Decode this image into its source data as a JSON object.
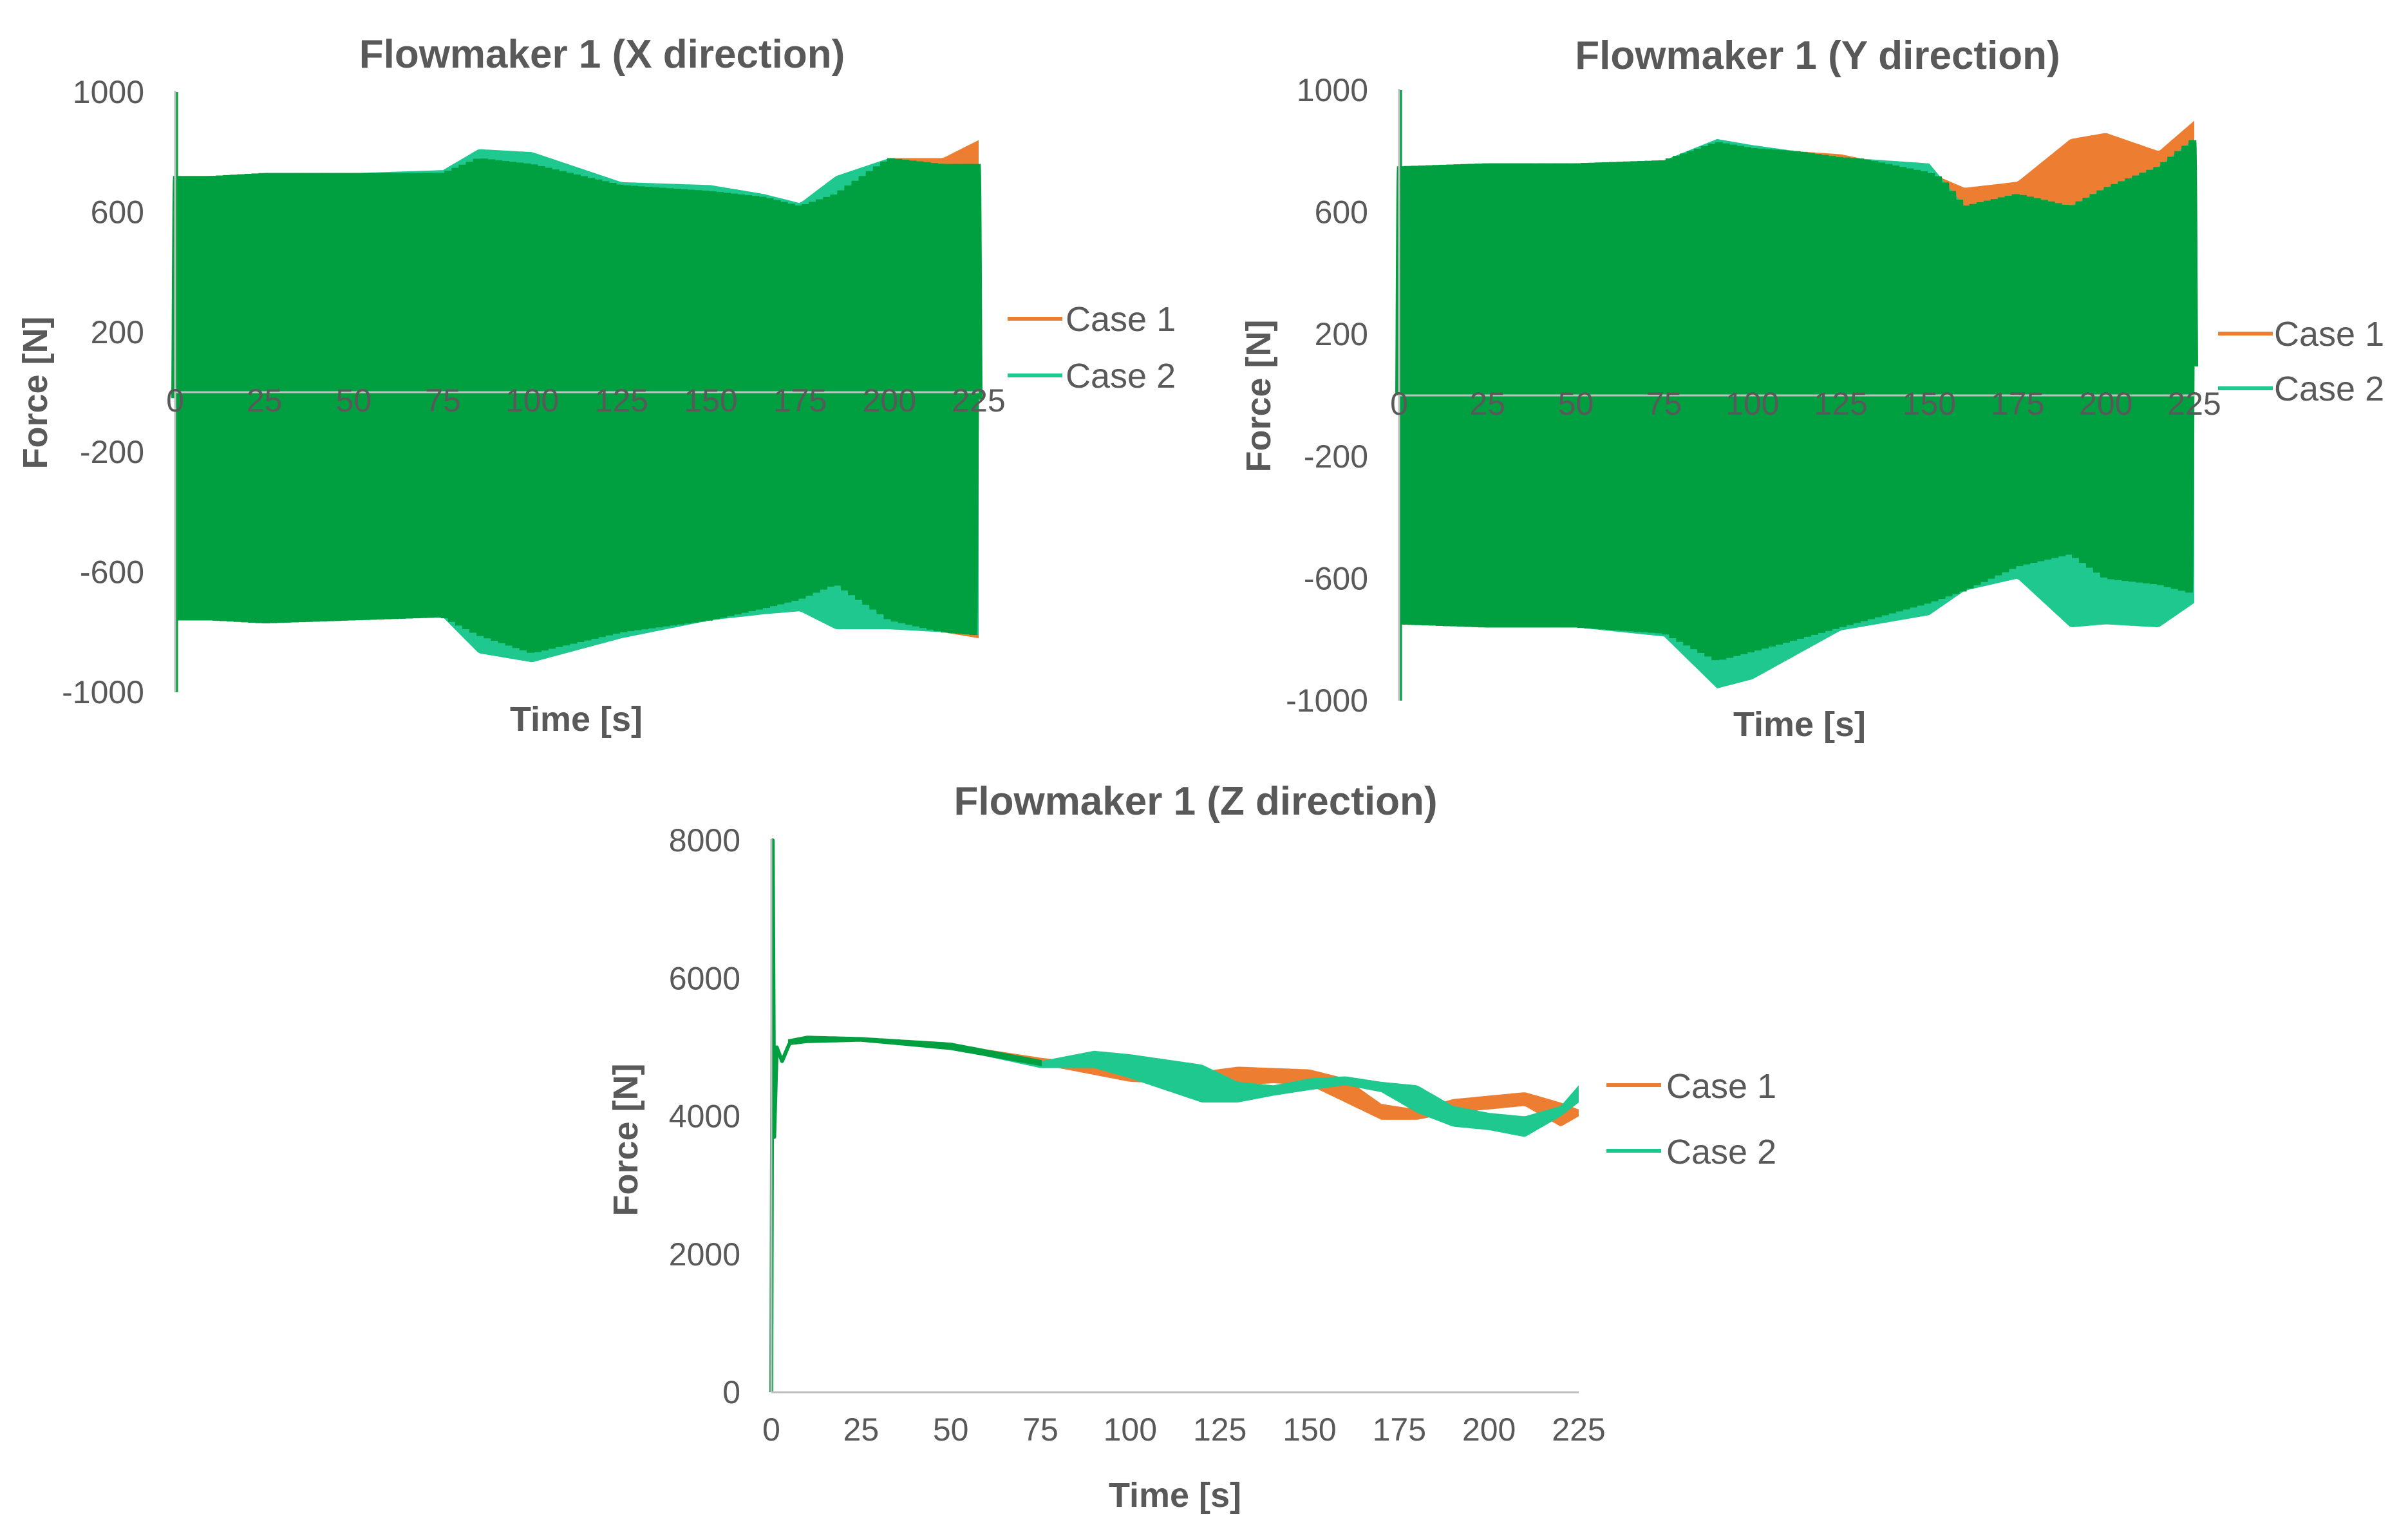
{
  "colors": {
    "case1": "#ED7D31",
    "case2": "#1FC88F",
    "overlap": "#00A040",
    "text": "#595959",
    "axis": "#7F7F7F"
  },
  "chart_data": [
    {
      "id": "fx",
      "type": "line",
      "title": "Flowmaker 1 (X direction)",
      "xlabel": "Time [s]",
      "ylabel": "Force [N]",
      "xlim": [
        0,
        225
      ],
      "ylim": [
        -1000,
        1000
      ],
      "xticks": [
        "0",
        "25",
        "50",
        "75",
        "100",
        "125",
        "150",
        "175",
        "200",
        "225"
      ],
      "yticks": [
        "1000",
        "600",
        "200",
        "-200",
        "-600",
        "-1000"
      ],
      "legend": [
        "Case 1",
        "Case 2"
      ],
      "oscillation_period_s": 2.0,
      "series": [
        {
          "name": "Case 1",
          "x": [
            0,
            10,
            25,
            50,
            75,
            85,
            100,
            125,
            150,
            165,
            175,
            185,
            200,
            215,
            225
          ],
          "upper": [
            720,
            720,
            730,
            730,
            730,
            780,
            760,
            690,
            670,
            650,
            620,
            660,
            780,
            780,
            840
          ],
          "lower": [
            -760,
            -760,
            -770,
            -760,
            -750,
            -810,
            -870,
            -800,
            -760,
            -720,
            -690,
            -640,
            -760,
            -800,
            -820
          ]
        },
        {
          "name": "Case 2",
          "x": [
            0,
            10,
            25,
            50,
            75,
            85,
            100,
            125,
            150,
            165,
            175,
            185,
            200,
            215,
            225
          ],
          "upper": [
            720,
            720,
            730,
            730,
            740,
            810,
            800,
            700,
            690,
            660,
            630,
            720,
            780,
            760,
            760
          ],
          "lower": [
            -760,
            -760,
            -770,
            -760,
            -750,
            -870,
            -900,
            -820,
            -760,
            -740,
            -730,
            -790,
            -790,
            -800,
            -810
          ]
        }
      ]
    },
    {
      "id": "fy",
      "type": "line",
      "title": "Flowmaker 1 (Y direction)",
      "xlabel": "Time [s]",
      "ylabel": "Force [N]",
      "xlim": [
        0,
        225
      ],
      "ylim": [
        -1000,
        1000
      ],
      "xticks": [
        "0",
        "25",
        "50",
        "75",
        "100",
        "125",
        "150",
        "175",
        "200",
        "225"
      ],
      "yticks": [
        "1000",
        "600",
        "200",
        "-200",
        "-600",
        "-1000"
      ],
      "legend": [
        "Case 1",
        "Case 2"
      ],
      "oscillation_period_s": 2.0,
      "series": [
        {
          "name": "Case 1",
          "x": [
            0,
            25,
            50,
            75,
            90,
            100,
            125,
            150,
            160,
            175,
            190,
            200,
            215,
            225
          ],
          "upper": [
            750,
            760,
            760,
            770,
            830,
            810,
            790,
            730,
            680,
            700,
            840,
            860,
            800,
            900
          ],
          "lower": [
            -750,
            -760,
            -760,
            -780,
            -870,
            -840,
            -760,
            -680,
            -640,
            -560,
            -520,
            -600,
            -620,
            -650
          ]
        },
        {
          "name": "Case 2",
          "x": [
            0,
            25,
            50,
            75,
            90,
            100,
            125,
            150,
            160,
            175,
            190,
            200,
            215,
            225
          ],
          "upper": [
            750,
            760,
            760,
            770,
            840,
            820,
            780,
            760,
            620,
            660,
            620,
            680,
            750,
            840
          ],
          "lower": [
            -750,
            -760,
            -760,
            -790,
            -960,
            -930,
            -770,
            -720,
            -640,
            -600,
            -760,
            -750,
            -760,
            -680
          ]
        }
      ]
    },
    {
      "id": "fz",
      "type": "line",
      "title": "Flowmaker 1 (Z direction)",
      "xlabel": "Time [s]",
      "ylabel": "Force [N]",
      "xlim": [
        0,
        225
      ],
      "ylim": [
        0,
        8000
      ],
      "xticks": [
        "0",
        "25",
        "50",
        "75",
        "100",
        "125",
        "150",
        "175",
        "200",
        "225"
      ],
      "yticks": [
        "8000",
        "6000",
        "4000",
        "2000",
        "0"
      ],
      "legend": [
        "Case 1",
        "Case 2"
      ],
      "spike": {
        "x": [
          0,
          0.4,
          0.8,
          1.5,
          3,
          5
        ],
        "y": [
          0,
          8000,
          3700,
          5000,
          4800,
          5050
        ]
      },
      "series": [
        {
          "name": "Case 1",
          "x": [
            5,
            10,
            25,
            50,
            75,
            90,
            100,
            120,
            130,
            140,
            150,
            160,
            170,
            180,
            190,
            200,
            210,
            220,
            225
          ],
          "upper": [
            5100,
            5150,
            5130,
            5050,
            4850,
            4750,
            4700,
            4650,
            4720,
            4700,
            4680,
            4550,
            4180,
            4100,
            4250,
            4300,
            4350,
            4200,
            4100
          ],
          "lower": [
            5050,
            5080,
            5100,
            4980,
            4750,
            4600,
            4500,
            4450,
            4450,
            4480,
            4450,
            4200,
            3950,
            3950,
            4050,
            4100,
            4150,
            3850,
            4000
          ]
        },
        {
          "name": "Case 2",
          "x": [
            5,
            10,
            25,
            50,
            75,
            90,
            100,
            120,
            130,
            140,
            150,
            160,
            170,
            180,
            190,
            200,
            210,
            220,
            225
          ],
          "upper": [
            5100,
            5150,
            5130,
            5050,
            4800,
            4950,
            4900,
            4750,
            4500,
            4450,
            4550,
            4580,
            4500,
            4450,
            4150,
            4050,
            4000,
            4150,
            4450
          ],
          "lower": [
            5050,
            5080,
            5100,
            4980,
            4700,
            4700,
            4550,
            4200,
            4200,
            4300,
            4380,
            4450,
            4350,
            4050,
            3850,
            3800,
            3700,
            4000,
            4200
          ]
        }
      ]
    }
  ]
}
